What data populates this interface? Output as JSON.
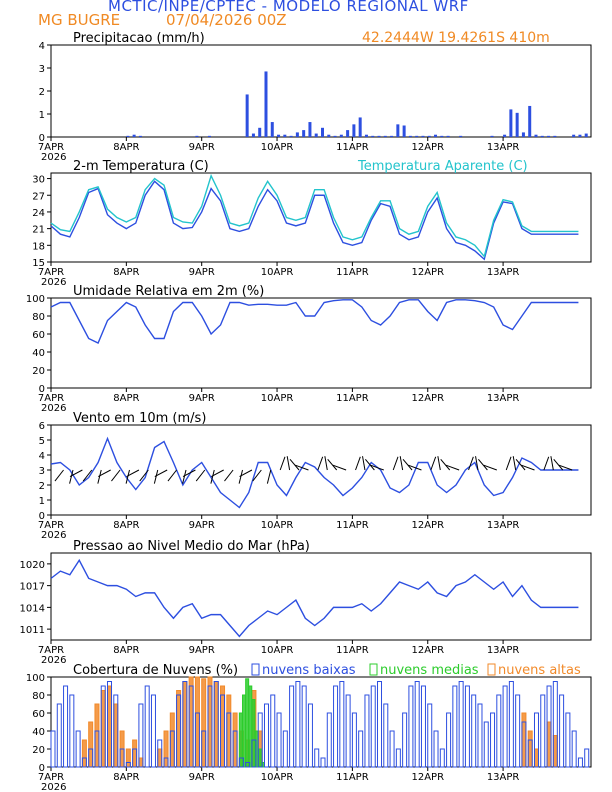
{
  "header": {
    "title": "MCTIC/INPE/CPTEC - MODELO REGIONAL WRF",
    "station": "MG BUGRE",
    "run": "07/04/2026 00Z",
    "coords": "42.2444W 19.4261S 410m"
  },
  "colors": {
    "blue": "#2d4fe0",
    "cyan": "#23c4cc",
    "green": "#2ccc2c",
    "orange": "#f28a2a",
    "black": "#000000"
  },
  "x_axis": {
    "labels": [
      "7APR",
      "8APR",
      "9APR",
      "10APR",
      "11APR",
      "12APR",
      "13APR"
    ],
    "year": "2026"
  },
  "chart_data": [
    {
      "id": "precip",
      "type": "bar",
      "title": "Precipitacao (mm/h)",
      "ylim": [
        0,
        4
      ],
      "yticks": [
        0,
        1,
        2,
        3,
        4
      ],
      "series": [
        {
          "name": "",
          "color": "#2d4fe0",
          "x_hours": [
            24,
            26,
            28,
            46,
            50,
            62,
            64,
            66,
            68,
            70,
            72,
            74,
            76,
            78,
            80,
            82,
            84,
            86,
            88,
            90,
            92,
            94,
            96,
            98,
            100,
            102,
            104,
            106,
            108,
            110,
            112,
            114,
            116,
            118,
            120,
            122,
            124,
            126,
            130,
            140,
            144,
            146,
            148,
            150,
            152,
            154,
            156,
            158,
            160,
            166,
            168,
            170
          ],
          "values": [
            0.05,
            0.1,
            0.05,
            0.05,
            0.05,
            1.85,
            0.15,
            0.4,
            2.85,
            0.65,
            0.1,
            0.1,
            0.05,
            0.2,
            0.3,
            0.65,
            0.15,
            0.4,
            0.1,
            0.05,
            0.1,
            0.3,
            0.55,
            0.85,
            0.1,
            0.05,
            0.05,
            0.05,
            0.05,
            0.55,
            0.5,
            0.05,
            0.05,
            0.05,
            0.05,
            0.1,
            0.05,
            0.05,
            0.05,
            0.05,
            0.1,
            1.2,
            1.05,
            0.2,
            1.35,
            0.1,
            0.05,
            0.05,
            0.05,
            0.1,
            0.1,
            0.15
          ]
        }
      ]
    },
    {
      "id": "temp",
      "type": "line",
      "title": "2-m Temperatura (C)",
      "legend_extra": "Temperatura Aparente (C)",
      "ylim": [
        15,
        31
      ],
      "yticks": [
        15,
        18,
        21,
        24,
        27,
        30
      ],
      "series": [
        {
          "name": "2-m Temperatura (C)",
          "color": "#2d4fe0",
          "x_hours": [
            0,
            3,
            6,
            9,
            12,
            15,
            18,
            21,
            24,
            27,
            30,
            33,
            36,
            39,
            42,
            45,
            48,
            51,
            54,
            57,
            60,
            63,
            66,
            69,
            72,
            75,
            78,
            81,
            84,
            87,
            90,
            93,
            96,
            99,
            102,
            105,
            108,
            111,
            114,
            117,
            120,
            123,
            126,
            129,
            132,
            135,
            138,
            141,
            144,
            147,
            150,
            153,
            156,
            159,
            162,
            165,
            168
          ],
          "values": [
            21.5,
            20.0,
            19.5,
            23.0,
            27.5,
            28.2,
            23.5,
            22.0,
            21.0,
            22.0,
            27.0,
            29.5,
            28.0,
            22.0,
            21.0,
            21.2,
            24.0,
            28.2,
            26.0,
            21.0,
            20.5,
            21.0,
            25.0,
            28.0,
            26.0,
            22.0,
            21.5,
            22.0,
            27.0,
            27.0,
            22.0,
            18.5,
            18.0,
            18.5,
            22.5,
            25.5,
            25.0,
            20.0,
            19.0,
            19.5,
            24.0,
            26.5,
            21.0,
            18.5,
            18.0,
            17.0,
            15.5,
            22.0,
            25.8,
            25.5,
            21.0,
            20.0,
            20.0,
            20.0,
            20.0,
            20.0,
            20.0
          ]
        },
        {
          "name": "Temperatura Aparente (C)",
          "color": "#23c4cc",
          "x_hours": [
            0,
            3,
            6,
            9,
            12,
            15,
            18,
            21,
            24,
            27,
            30,
            33,
            36,
            39,
            42,
            45,
            48,
            51,
            54,
            57,
            60,
            63,
            66,
            69,
            72,
            75,
            78,
            81,
            84,
            87,
            90,
            93,
            96,
            99,
            102,
            105,
            108,
            111,
            114,
            117,
            120,
            123,
            126,
            129,
            132,
            135,
            138,
            141,
            144,
            147,
            150,
            153,
            156,
            159,
            162,
            165,
            168
          ],
          "values": [
            22.0,
            20.8,
            20.5,
            24.0,
            28.0,
            28.5,
            24.5,
            23.0,
            22.2,
            23.0,
            28.0,
            30.0,
            28.8,
            23.0,
            22.2,
            22.0,
            25.0,
            30.5,
            27.0,
            22.0,
            21.5,
            22.0,
            26.5,
            29.5,
            27.0,
            23.0,
            22.5,
            23.0,
            28.0,
            28.0,
            23.0,
            19.5,
            19.0,
            19.5,
            23.0,
            26.0,
            26.0,
            21.0,
            20.0,
            20.5,
            25.0,
            27.5,
            22.0,
            19.5,
            19.0,
            18.0,
            16.0,
            22.5,
            26.2,
            25.8,
            21.5,
            20.5,
            20.5,
            20.5,
            20.5,
            20.5,
            20.5
          ]
        }
      ]
    },
    {
      "id": "rh",
      "type": "line",
      "title": "Umidade Relativa em 2m (%)",
      "ylim": [
        0,
        100
      ],
      "yticks": [
        0,
        20,
        40,
        60,
        80,
        100
      ],
      "series": [
        {
          "name": "",
          "color": "#2d4fe0",
          "x_hours": [
            0,
            3,
            6,
            9,
            12,
            15,
            18,
            21,
            24,
            27,
            30,
            33,
            36,
            39,
            42,
            45,
            48,
            51,
            54,
            57,
            60,
            63,
            66,
            69,
            72,
            75,
            78,
            81,
            84,
            87,
            90,
            93,
            96,
            99,
            102,
            105,
            108,
            111,
            114,
            117,
            120,
            123,
            126,
            129,
            132,
            135,
            138,
            141,
            144,
            147,
            150,
            153,
            156,
            159,
            162,
            165,
            168
          ],
          "values": [
            90,
            95,
            95,
            75,
            55,
            50,
            75,
            85,
            95,
            90,
            70,
            55,
            55,
            85,
            95,
            95,
            80,
            60,
            70,
            95,
            95,
            92,
            93,
            93,
            92,
            92,
            95,
            80,
            80,
            95,
            97,
            98,
            98,
            90,
            75,
            70,
            80,
            95,
            98,
            98,
            85,
            75,
            95,
            98,
            98,
            97,
            95,
            90,
            70,
            65,
            80,
            95,
            95,
            95,
            95,
            95,
            95
          ]
        }
      ]
    },
    {
      "id": "wind",
      "type": "line",
      "title": "Vento em 10m (m/s)",
      "ylim": [
        0,
        6
      ],
      "yticks": [
        0,
        1,
        2,
        3,
        4,
        5,
        6
      ],
      "series": [
        {
          "name": "",
          "color": "#2d4fe0",
          "x_hours": [
            0,
            3,
            6,
            9,
            12,
            15,
            18,
            21,
            24,
            27,
            30,
            33,
            36,
            39,
            42,
            45,
            48,
            51,
            54,
            57,
            60,
            63,
            66,
            69,
            72,
            75,
            78,
            81,
            84,
            87,
            90,
            93,
            96,
            99,
            102,
            105,
            108,
            111,
            114,
            117,
            120,
            123,
            126,
            129,
            132,
            135,
            138,
            141,
            144,
            147,
            150,
            153,
            156,
            159,
            162,
            165,
            168
          ],
          "values": [
            3.4,
            3.5,
            3.0,
            2.0,
            2.5,
            3.5,
            5.1,
            3.5,
            2.5,
            1.7,
            2.5,
            4.5,
            4.9,
            3.5,
            2.0,
            3.0,
            3.5,
            2.5,
            1.5,
            1.0,
            0.5,
            1.5,
            3.5,
            3.5,
            2.0,
            1.3,
            2.5,
            3.5,
            3.2,
            2.5,
            2.0,
            1.3,
            1.8,
            2.5,
            3.5,
            3.0,
            1.8,
            1.5,
            2.0,
            3.5,
            3.5,
            2.0,
            1.5,
            2.0,
            3.0,
            3.5,
            2.0,
            1.3,
            1.5,
            2.5,
            3.8,
            3.5,
            3.0,
            3.0,
            3.0,
            3.0,
            3.0
          ]
        }
      ]
    },
    {
      "id": "pressure",
      "type": "line",
      "title": "Pressao ao Nivel Medio do Mar (hPa)",
      "ylim": [
        1009.5,
        1021.5
      ],
      "yticks": [
        1011,
        1014,
        1017,
        1020
      ],
      "series": [
        {
          "name": "",
          "color": "#2d4fe0",
          "x_hours": [
            0,
            3,
            6,
            9,
            12,
            15,
            18,
            21,
            24,
            27,
            30,
            33,
            36,
            39,
            42,
            45,
            48,
            51,
            54,
            57,
            60,
            63,
            66,
            69,
            72,
            75,
            78,
            81,
            84,
            87,
            90,
            93,
            96,
            99,
            102,
            105,
            108,
            111,
            114,
            117,
            120,
            123,
            126,
            129,
            132,
            135,
            138,
            141,
            144,
            147,
            150,
            153,
            156,
            159,
            162,
            165,
            168
          ],
          "values": [
            1018,
            1019,
            1018.5,
            1020.5,
            1018,
            1017.5,
            1017,
            1017,
            1016.5,
            1015.5,
            1016,
            1016,
            1014,
            1012.5,
            1014,
            1014.5,
            1012.5,
            1013,
            1013,
            1011.5,
            1010,
            1011.5,
            1012.5,
            1013.5,
            1013,
            1014,
            1015,
            1012.5,
            1011.5,
            1012.5,
            1014,
            1014,
            1014,
            1014.5,
            1013.5,
            1014.5,
            1016,
            1017.5,
            1017,
            1016.5,
            1017.5,
            1016,
            1015.5,
            1017,
            1017.5,
            1018.5,
            1017.5,
            1016.5,
            1017.5,
            1015.5,
            1017,
            1015,
            1014,
            1014,
            1014,
            1014,
            1014
          ]
        }
      ]
    },
    {
      "id": "clouds",
      "type": "bar",
      "title": "Cobertura de Nuvens (%)",
      "ylim": [
        0,
        100
      ],
      "yticks": [
        0,
        20,
        40,
        60,
        80,
        100
      ],
      "legend": [
        "nuvens baixas",
        "nuvens medias",
        "nuvens altas"
      ],
      "series": [
        {
          "name": "nuvens baixas",
          "color": "#2d4fe0",
          "x_hours": [
            0,
            2,
            4,
            6,
            8,
            10,
            12,
            14,
            16,
            18,
            20,
            22,
            24,
            26,
            28,
            30,
            32,
            34,
            36,
            38,
            40,
            42,
            44,
            46,
            48,
            50,
            52,
            54,
            56,
            58,
            60,
            62,
            64,
            66,
            68,
            70,
            72,
            74,
            76,
            78,
            80,
            82,
            84,
            86,
            88,
            90,
            92,
            94,
            96,
            98,
            100,
            102,
            104,
            106,
            108,
            110,
            112,
            114,
            116,
            118,
            120,
            122,
            124,
            126,
            128,
            130,
            132,
            134,
            136,
            138,
            140,
            142,
            144,
            146,
            148,
            150,
            152,
            154,
            156,
            158,
            160,
            162,
            164,
            166,
            168,
            170
          ],
          "values": [
            40,
            70,
            90,
            80,
            40,
            10,
            20,
            40,
            90,
            95,
            80,
            20,
            5,
            20,
            70,
            90,
            80,
            30,
            10,
            40,
            80,
            95,
            90,
            60,
            40,
            90,
            95,
            80,
            60,
            40,
            10,
            5,
            30,
            60,
            70,
            80,
            60,
            40,
            90,
            95,
            90,
            70,
            20,
            10,
            60,
            90,
            95,
            80,
            60,
            40,
            80,
            90,
            95,
            70,
            40,
            20,
            60,
            90,
            95,
            90,
            70,
            40,
            20,
            60,
            90,
            95,
            90,
            80,
            70,
            50,
            60,
            80,
            90,
            95,
            80,
            50,
            30,
            60,
            80,
            90,
            95,
            80,
            60,
            40,
            10,
            20
          ]
        },
        {
          "name": "nuvens medias",
          "color": "#2ccc2c",
          "x_hours": [
            60,
            61,
            62,
            63,
            64,
            65,
            66,
            67
          ],
          "values": [
            60,
            80,
            98,
            90,
            75,
            40,
            20,
            5
          ]
        },
        {
          "name": "nuvens altas",
          "color": "#f28a2a",
          "x_hours": [
            10,
            12,
            14,
            16,
            18,
            20,
            22,
            24,
            26,
            28,
            34,
            36,
            38,
            40,
            42,
            44,
            46,
            48,
            50,
            52,
            54,
            56,
            58,
            60,
            62,
            64,
            66,
            150,
            152,
            154,
            158,
            160
          ],
          "values": [
            30,
            50,
            70,
            85,
            90,
            70,
            40,
            20,
            30,
            10,
            20,
            40,
            60,
            85,
            95,
            100,
            100,
            98,
            100,
            95,
            90,
            80,
            60,
            40,
            30,
            85,
            40,
            60,
            40,
            20,
            50,
            35
          ]
        }
      ]
    }
  ]
}
